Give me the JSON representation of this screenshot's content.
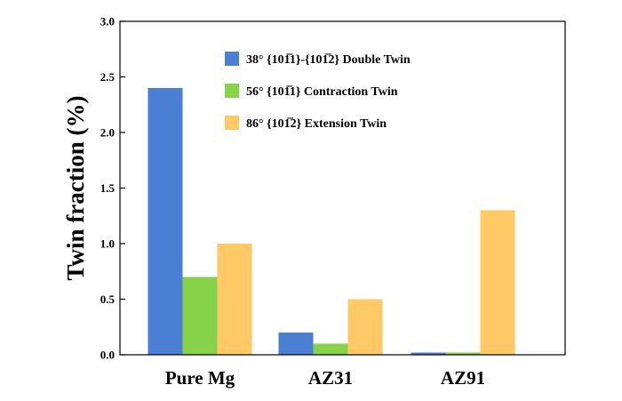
{
  "chart_data": {
    "type": "bar",
    "title": "",
    "xlabel": "",
    "ylabel": "Twin fraction (%)",
    "ylim": [
      0,
      3.0
    ],
    "yticks": [
      "0.0",
      "0.5",
      "1.0",
      "1.5",
      "2.0",
      "2.5",
      "3.0"
    ],
    "categories": [
      "Pure Mg",
      "AZ31",
      "AZ91"
    ],
    "legend_position": "top-right",
    "grid": false,
    "series": [
      {
        "name": "38° {101̅1}-{101̅2} Double Twin",
        "color": "#4a7fd4",
        "values": [
          2.4,
          0.2,
          0.02
        ]
      },
      {
        "name": "56° {101̅1} Contraction Twin",
        "color": "#86d34a",
        "values": [
          0.7,
          0.1,
          0.02
        ]
      },
      {
        "name": "86° {101̅2} Extension Twin",
        "color": "#ffc966",
        "values": [
          1.0,
          0.5,
          1.3
        ]
      }
    ]
  }
}
